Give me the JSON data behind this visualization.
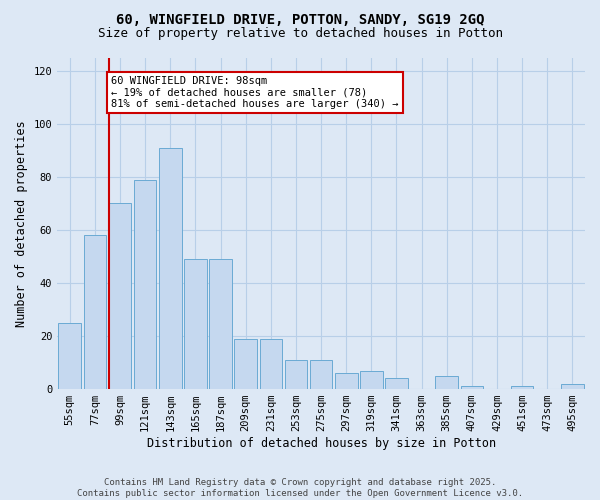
{
  "title_line1": "60, WINGFIELD DRIVE, POTTON, SANDY, SG19 2GQ",
  "title_line2": "Size of property relative to detached houses in Potton",
  "xlabel": "Distribution of detached houses by size in Potton",
  "ylabel": "Number of detached properties",
  "bar_labels": [
    "55sqm",
    "77sqm",
    "99sqm",
    "121sqm",
    "143sqm",
    "165sqm",
    "187sqm",
    "209sqm",
    "231sqm",
    "253sqm",
    "275sqm",
    "297sqm",
    "319sqm",
    "341sqm",
    "363sqm",
    "385sqm",
    "407sqm",
    "429sqm",
    "451sqm",
    "473sqm",
    "495sqm"
  ],
  "bar_values": [
    25,
    58,
    70,
    79,
    91,
    49,
    49,
    19,
    19,
    11,
    11,
    6,
    7,
    4,
    0,
    5,
    1,
    0,
    1,
    0,
    2
  ],
  "bar_color": "#c5d8ef",
  "bar_edgecolor": "#6aaad4",
  "vline_index": 1.575,
  "annotation_text": "60 WINGFIELD DRIVE: 98sqm\n← 19% of detached houses are smaller (78)\n81% of semi-detached houses are larger (340) →",
  "annotation_box_facecolor": "#ffffff",
  "annotation_box_edgecolor": "#cc0000",
  "vline_color": "#cc0000",
  "ylim": [
    0,
    125
  ],
  "yticks": [
    0,
    20,
    40,
    60,
    80,
    100,
    120
  ],
  "grid_color": "#b8cfe8",
  "background_color": "#dde8f5",
  "footer_line1": "Contains HM Land Registry data © Crown copyright and database right 2025.",
  "footer_line2": "Contains public sector information licensed under the Open Government Licence v3.0.",
  "title_fontsize": 10,
  "subtitle_fontsize": 9,
  "axis_label_fontsize": 8.5,
  "tick_fontsize": 7.5,
  "annotation_fontsize": 7.5,
  "footer_fontsize": 6.5
}
